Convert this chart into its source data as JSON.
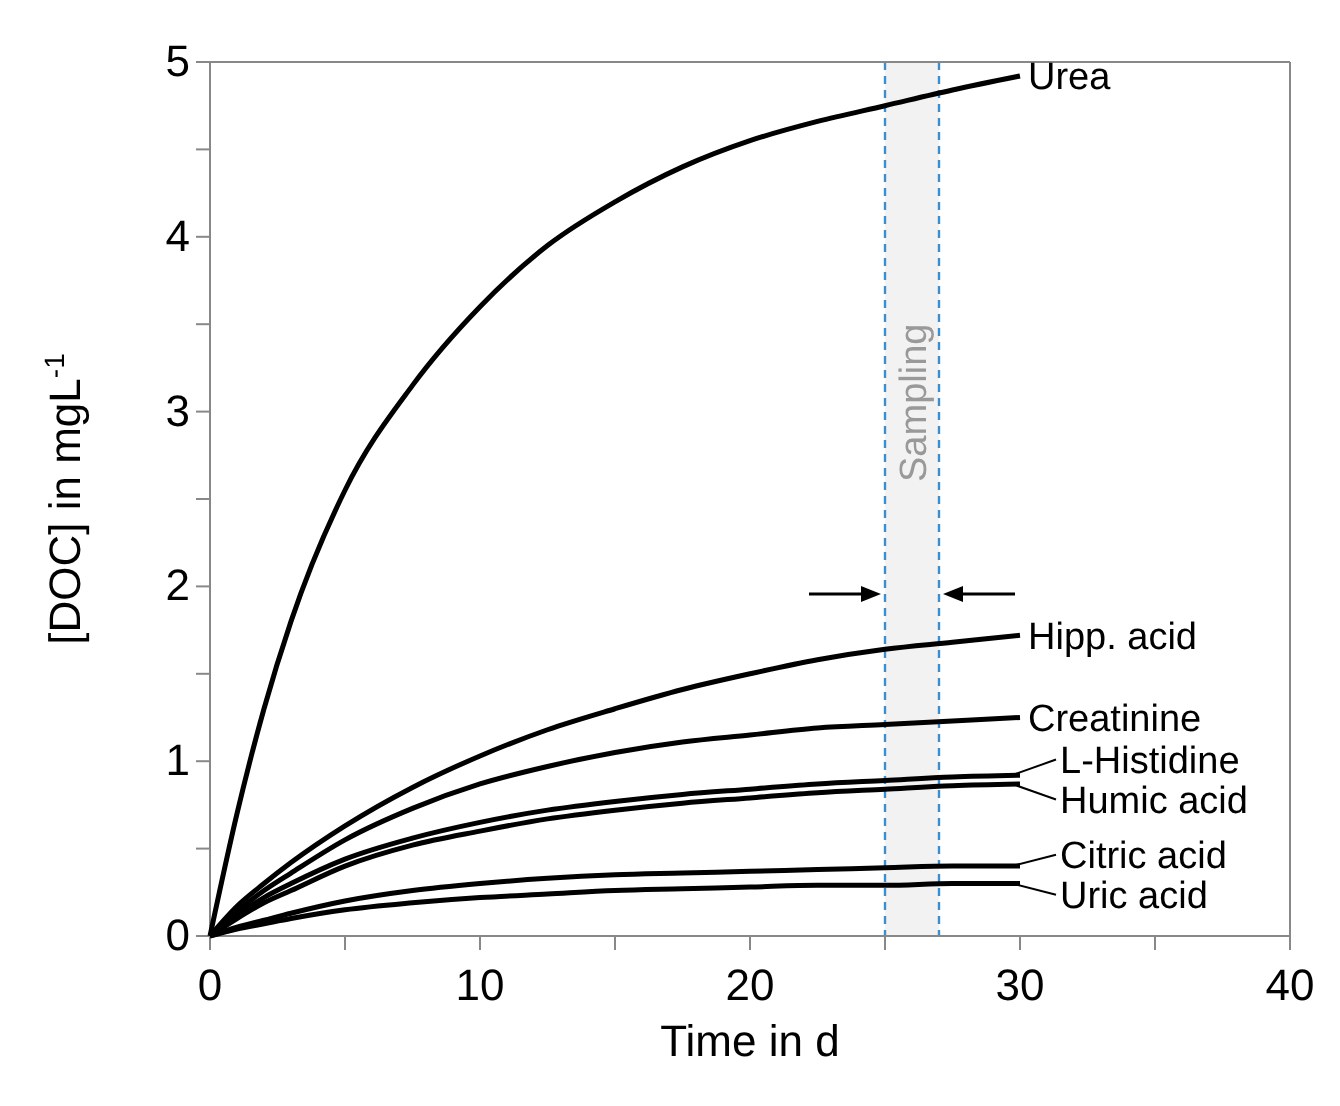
{
  "chart_data": {
    "type": "line",
    "xlabel": "Time in d",
    "ylabel": "[DOC] in mgL$^{-1}$",
    "x": [
      0,
      1,
      2,
      3,
      5,
      7.5,
      10,
      12.5,
      15,
      17.5,
      20,
      22.5,
      25,
      27.5,
      30
    ],
    "series": [
      {
        "name": "Urea",
        "color": "#000000",
        "values": [
          0,
          0.7,
          1.3,
          1.8,
          2.55,
          3.15,
          3.6,
          3.95,
          4.2,
          4.4,
          4.55,
          4.66,
          4.75,
          4.84,
          4.92
        ]
      },
      {
        "name": "Hipp. acid",
        "color": "#000000",
        "values": [
          0,
          0.17,
          0.3,
          0.42,
          0.63,
          0.85,
          1.03,
          1.18,
          1.3,
          1.41,
          1.5,
          1.58,
          1.64,
          1.68,
          1.72
        ]
      },
      {
        "name": "Creatinine",
        "color": "#000000",
        "values": [
          0,
          0.14,
          0.26,
          0.36,
          0.55,
          0.73,
          0.87,
          0.97,
          1.05,
          1.11,
          1.15,
          1.19,
          1.21,
          1.23,
          1.25
        ]
      },
      {
        "name": "L-Histidine",
        "color": "#000000",
        "values": [
          0,
          0.12,
          0.22,
          0.3,
          0.44,
          0.56,
          0.65,
          0.72,
          0.77,
          0.81,
          0.84,
          0.87,
          0.89,
          0.91,
          0.92
        ]
      },
      {
        "name": "Humic acid",
        "color": "#000000",
        "values": [
          0,
          0.1,
          0.19,
          0.26,
          0.4,
          0.52,
          0.6,
          0.67,
          0.72,
          0.76,
          0.79,
          0.82,
          0.84,
          0.86,
          0.87
        ]
      },
      {
        "name": "Citric acid",
        "color": "#000000",
        "values": [
          0,
          0.05,
          0.09,
          0.13,
          0.2,
          0.26,
          0.3,
          0.33,
          0.35,
          0.36,
          0.37,
          0.38,
          0.39,
          0.4,
          0.4
        ]
      },
      {
        "name": "Uric acid",
        "color": "#000000",
        "values": [
          0,
          0.04,
          0.07,
          0.1,
          0.15,
          0.19,
          0.22,
          0.24,
          0.26,
          0.27,
          0.28,
          0.29,
          0.29,
          0.3,
          0.3
        ]
      }
    ],
    "xlim": [
      0,
      40
    ],
    "xticks": [
      0,
      {
        "value": 5,
        "label": null
      },
      10,
      {
        "value": 15,
        "label": null
      },
      20,
      {
        "value": 25,
        "label": null
      },
      30,
      {
        "value": 35,
        "label": null
      },
      40
    ],
    "ylim": [
      0,
      5
    ],
    "yticks": [
      0,
      {
        "value": 0.5,
        "label": null
      },
      1,
      {
        "value": 1.5,
        "label": null
      },
      2,
      {
        "value": 2.5,
        "label": null
      },
      3,
      {
        "value": 3.5,
        "label": null
      },
      4,
      {
        "value": 4.5,
        "label": null
      },
      5
    ],
    "bands": [
      {
        "axis": "x",
        "from": 25,
        "to": 27,
        "label": "Sampling",
        "color": "#f2f2f2"
      }
    ],
    "ref_lines": [
      {
        "axis": "x",
        "value": 25,
        "color": "#3a8fd0",
        "line_style": "dashed"
      },
      {
        "axis": "x",
        "value": 27,
        "color": "#3a8fd0",
        "line_style": "dashed"
      }
    ],
    "grid": false,
    "legend": "right",
    "marker": "none",
    "line_style": "solid"
  }
}
